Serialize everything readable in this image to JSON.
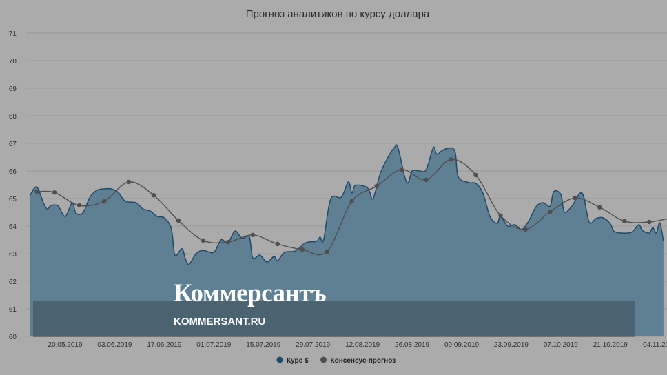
{
  "chart_data": {
    "type": "area",
    "title": "Прогноз аналитиков по курсу доллара",
    "xlabel": "",
    "ylabel": "",
    "ylim": [
      60,
      71
    ],
    "yticks": [
      60,
      61,
      62,
      63,
      64,
      65,
      66,
      67,
      68,
      69,
      70,
      71
    ],
    "xlim": [
      "2019-05-09",
      "2019-11-06"
    ],
    "xticks": [
      "20.05.2019",
      "03.06.2019",
      "17.06.2019",
      "01.07.2019",
      "15.07.2019",
      "29.07.2019",
      "12.08.2019",
      "26.08.2019",
      "09.09.2019",
      "23.09.2019",
      "07.10.2019",
      "21.10.2019",
      "04.11.2019"
    ],
    "grid": true,
    "legend_position": "bottom-center",
    "series": [
      {
        "name": "Курс $",
        "type": "area",
        "color": "#46718c",
        "points": [
          [
            "2019-05-10",
            65.1
          ],
          [
            "2019-05-12",
            65.42
          ],
          [
            "2019-05-14",
            64.8
          ],
          [
            "2019-05-15",
            64.62
          ],
          [
            "2019-05-16",
            64.75
          ],
          [
            "2019-05-18",
            64.73
          ],
          [
            "2019-05-20",
            64.35
          ],
          [
            "2019-05-22",
            64.85
          ],
          [
            "2019-05-23",
            64.48
          ],
          [
            "2019-05-25",
            64.48
          ],
          [
            "2019-05-27",
            65.05
          ],
          [
            "2019-05-29",
            65.3
          ],
          [
            "2019-05-31",
            65.35
          ],
          [
            "2019-06-02",
            65.35
          ],
          [
            "2019-06-04",
            65.22
          ],
          [
            "2019-06-06",
            64.9
          ],
          [
            "2019-06-09",
            64.85
          ],
          [
            "2019-06-11",
            64.62
          ],
          [
            "2019-06-13",
            64.55
          ],
          [
            "2019-06-15",
            64.35
          ],
          [
            "2019-06-17",
            64.3
          ],
          [
            "2019-06-19",
            63.9
          ],
          [
            "2019-06-20",
            62.95
          ],
          [
            "2019-06-22",
            63.18
          ],
          [
            "2019-06-23",
            62.8
          ],
          [
            "2019-06-24",
            62.62
          ],
          [
            "2019-06-26",
            63.0
          ],
          [
            "2019-06-28",
            63.12
          ],
          [
            "2019-07-01",
            63.05
          ],
          [
            "2019-07-03",
            63.5
          ],
          [
            "2019-07-05",
            63.4
          ],
          [
            "2019-07-07",
            63.82
          ],
          [
            "2019-07-09",
            63.55
          ],
          [
            "2019-07-11",
            63.62
          ],
          [
            "2019-07-12",
            62.85
          ],
          [
            "2019-07-14",
            62.95
          ],
          [
            "2019-07-16",
            62.7
          ],
          [
            "2019-07-18",
            62.9
          ],
          [
            "2019-07-19",
            62.75
          ],
          [
            "2019-07-21",
            63.05
          ],
          [
            "2019-07-24",
            63.1
          ],
          [
            "2019-07-27",
            63.4
          ],
          [
            "2019-07-30",
            63.45
          ],
          [
            "2019-07-31",
            63.6
          ],
          [
            "2019-08-01",
            63.5
          ],
          [
            "2019-08-03",
            64.98
          ],
          [
            "2019-08-06",
            65.05
          ],
          [
            "2019-08-08",
            65.6
          ],
          [
            "2019-08-09",
            65.2
          ],
          [
            "2019-08-10",
            65.48
          ],
          [
            "2019-08-13",
            65.42
          ],
          [
            "2019-08-14",
            65.25
          ],
          [
            "2019-08-15",
            65.0
          ],
          [
            "2019-08-17",
            65.9
          ],
          [
            "2019-08-19",
            66.45
          ],
          [
            "2019-08-21",
            66.85
          ],
          [
            "2019-08-22",
            66.85
          ],
          [
            "2019-08-24",
            65.75
          ],
          [
            "2019-08-25",
            65.6
          ],
          [
            "2019-08-26",
            66.0
          ],
          [
            "2019-08-28",
            66.0
          ],
          [
            "2019-08-30",
            66.05
          ],
          [
            "2019-09-01",
            66.85
          ],
          [
            "2019-09-02",
            66.6
          ],
          [
            "2019-09-04",
            66.78
          ],
          [
            "2019-09-07",
            66.75
          ],
          [
            "2019-09-08",
            65.8
          ],
          [
            "2019-09-11",
            65.58
          ],
          [
            "2019-09-13",
            65.55
          ],
          [
            "2019-09-15",
            65.2
          ],
          [
            "2019-09-17",
            64.35
          ],
          [
            "2019-09-19",
            64.1
          ],
          [
            "2019-09-20",
            64.35
          ],
          [
            "2019-09-22",
            64.0
          ],
          [
            "2019-09-24",
            64.05
          ],
          [
            "2019-09-26",
            63.88
          ],
          [
            "2019-09-28",
            64.2
          ],
          [
            "2019-09-30",
            64.7
          ],
          [
            "2019-10-02",
            64.85
          ],
          [
            "2019-10-04",
            64.72
          ],
          [
            "2019-10-05",
            65.25
          ],
          [
            "2019-10-07",
            65.15
          ],
          [
            "2019-10-08",
            64.52
          ],
          [
            "2019-10-10",
            64.7
          ],
          [
            "2019-10-13",
            65.2
          ],
          [
            "2019-10-15",
            64.15
          ],
          [
            "2019-10-17",
            64.28
          ],
          [
            "2019-10-19",
            64.3
          ],
          [
            "2019-10-21",
            64.08
          ],
          [
            "2019-10-22",
            63.82
          ],
          [
            "2019-10-24",
            63.75
          ],
          [
            "2019-10-27",
            63.78
          ],
          [
            "2019-10-29",
            64.05
          ],
          [
            "2019-10-30",
            63.85
          ],
          [
            "2019-11-01",
            63.75
          ],
          [
            "2019-11-02",
            63.95
          ],
          [
            "2019-11-03",
            63.75
          ],
          [
            "2019-11-04",
            64.12
          ],
          [
            "2019-11-05",
            63.45
          ]
        ]
      },
      {
        "name": "Консенсус-прогноз",
        "type": "line",
        "color": "#4f4f4f",
        "points": [
          [
            "2019-05-12",
            65.25
          ],
          [
            "2019-05-17",
            65.22
          ],
          [
            "2019-05-24",
            64.75
          ],
          [
            "2019-05-31",
            64.9
          ],
          [
            "2019-06-07",
            65.6
          ],
          [
            "2019-06-14",
            65.12
          ],
          [
            "2019-06-21",
            64.2
          ],
          [
            "2019-06-28",
            63.48
          ],
          [
            "2019-07-05",
            63.42
          ],
          [
            "2019-07-12",
            63.68
          ],
          [
            "2019-07-19",
            63.35
          ],
          [
            "2019-07-26",
            63.15
          ],
          [
            "2019-08-02",
            63.08
          ],
          [
            "2019-08-09",
            64.9
          ],
          [
            "2019-08-16",
            65.45
          ],
          [
            "2019-08-23",
            66.05
          ],
          [
            "2019-08-30",
            65.68
          ],
          [
            "2019-09-06",
            66.42
          ],
          [
            "2019-09-13",
            65.85
          ],
          [
            "2019-09-20",
            64.38
          ],
          [
            "2019-09-27",
            63.88
          ],
          [
            "2019-10-04",
            64.52
          ],
          [
            "2019-10-11",
            65.02
          ],
          [
            "2019-10-18",
            64.68
          ],
          [
            "2019-10-25",
            64.18
          ],
          [
            "2019-11-01",
            64.15
          ],
          [
            "2019-11-08",
            64.32
          ]
        ]
      }
    ]
  },
  "watermark": {
    "brand": "Коммерсантъ",
    "url": "KOMMERSANT.RU"
  },
  "colors": {
    "background": "#ababab",
    "grid": "#9a9a9a",
    "area_fill": "#5f7f93",
    "area_stroke": "#1d4a6a",
    "consensus_line": "#4f4f4f",
    "watermark_band": "#3a4a56"
  }
}
